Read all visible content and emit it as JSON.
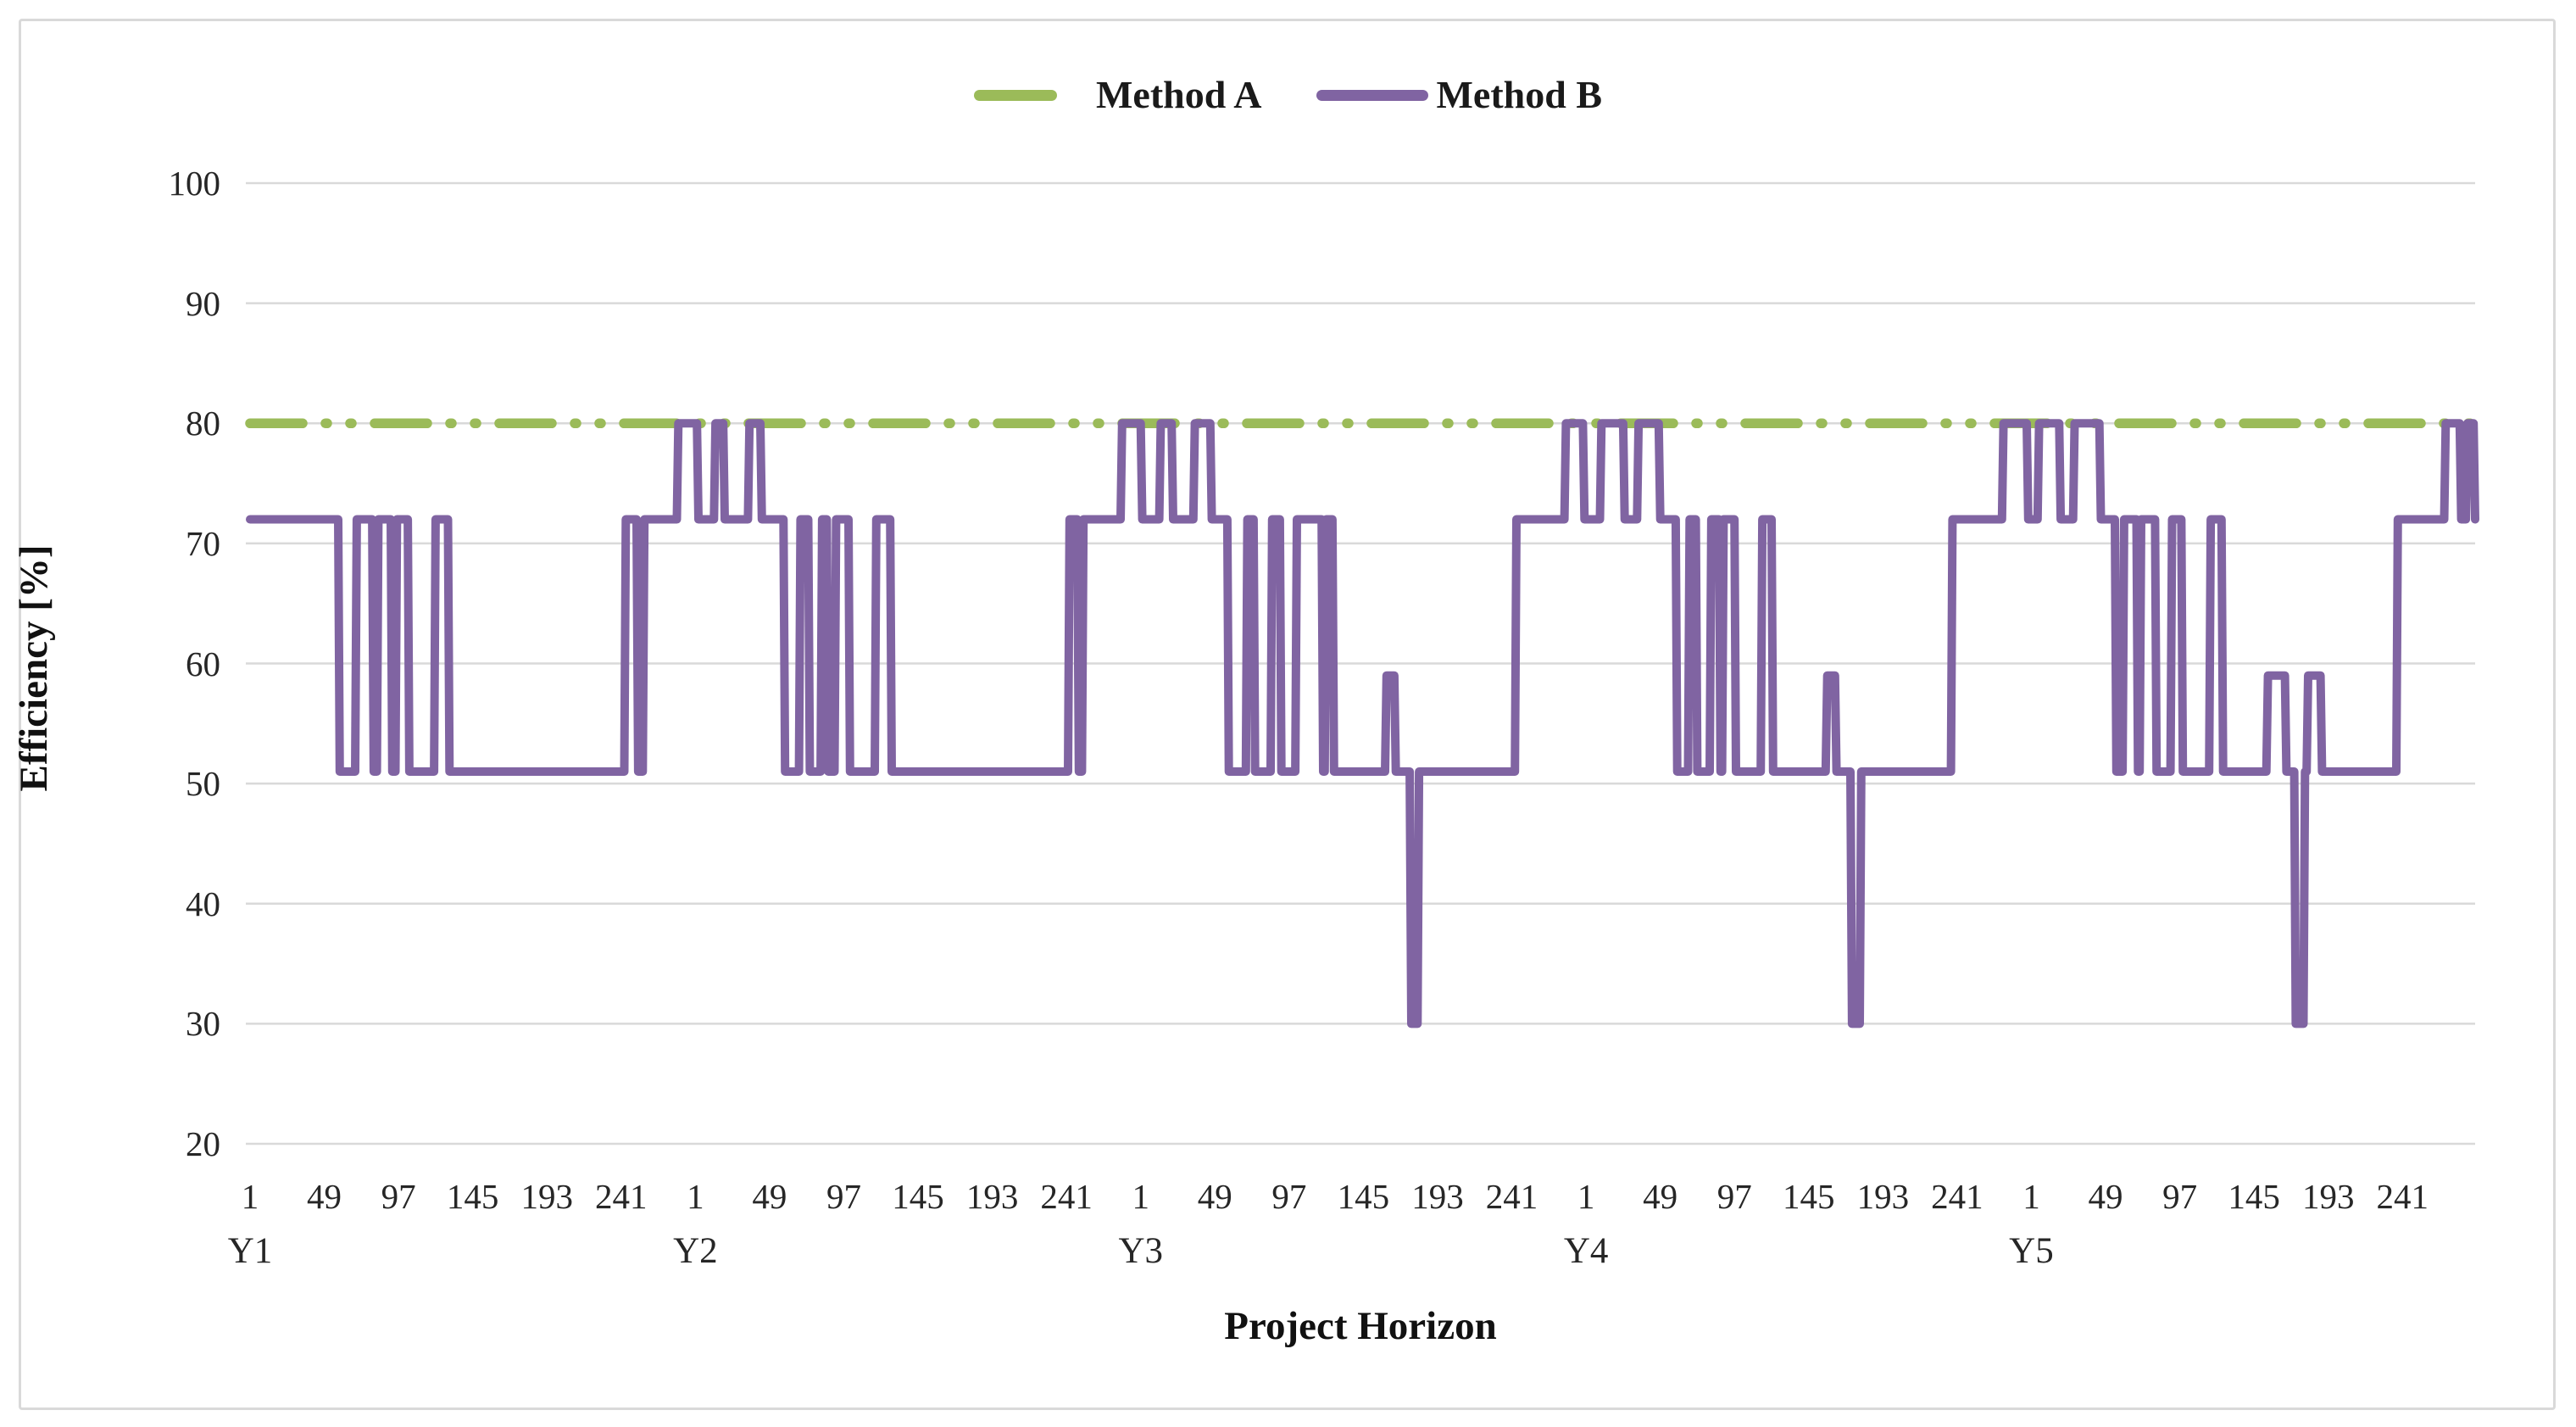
{
  "colors": {
    "method_a_green": "#9bbb59",
    "method_b_purple": "#8064a2",
    "gridline": "#d9d9d9",
    "chart_border": "#d9d9d9",
    "tick_text": "#262626",
    "title_text": "#111111",
    "background": "#ffffff"
  },
  "chart_data": {
    "type": "line",
    "title": "",
    "xlabel": "Project Horizon",
    "ylabel": "Efficiency [%]",
    "ylim": [
      20,
      100
    ],
    "yticks": [
      20,
      30,
      40,
      50,
      60,
      70,
      80,
      90,
      100
    ],
    "grid": true,
    "legend_position": "top-center",
    "legend": [
      {
        "label": "Method A",
        "color": "#9bbb59",
        "style": "dash-dot-dot"
      },
      {
        "label": "Method B",
        "color": "#8064a2",
        "style": "solid"
      }
    ],
    "x_axis": {
      "group_labels": [
        "Y1",
        "Y2",
        "Y3",
        "Y4",
        "Y5"
      ],
      "ticks_within_group": [
        1,
        49,
        97,
        145,
        193,
        241
      ],
      "points_per_group": 288,
      "total_points": 1440
    },
    "series": [
      {
        "name": "Method A",
        "color": "#9bbb59",
        "line_style": "dash-dot-dot",
        "type": "constant",
        "constant_value": 80,
        "x_start": 1,
        "x_end": 1440
      },
      {
        "name": "Method B",
        "color": "#8064a2",
        "line_style": "solid",
        "type": "step_runs",
        "step_runs": [
          [
            1,
            58,
            72
          ],
          [
            59,
            69,
            51
          ],
          [
            70,
            80,
            72
          ],
          [
            81,
            83,
            51
          ],
          [
            84,
            92,
            72
          ],
          [
            93,
            95,
            51
          ],
          [
            96,
            103,
            72
          ],
          [
            104,
            120,
            51
          ],
          [
            121,
            129,
            72
          ],
          [
            130,
            243,
            51
          ],
          [
            244,
            251,
            72
          ],
          [
            252,
            255,
            51
          ],
          [
            256,
            277,
            72
          ],
          [
            278,
            290,
            80
          ],
          [
            291,
            301,
            72
          ],
          [
            302,
            307,
            80
          ],
          [
            308,
            323,
            72
          ],
          [
            324,
            331,
            80
          ],
          [
            332,
            346,
            72
          ],
          [
            347,
            356,
            51
          ],
          [
            357,
            362,
            72
          ],
          [
            363,
            370,
            51
          ],
          [
            371,
            374,
            72
          ],
          [
            375,
            379,
            51
          ],
          [
            380,
            388,
            72
          ],
          [
            389,
            405,
            51
          ],
          [
            406,
            415,
            72
          ],
          [
            416,
            530,
            51
          ],
          [
            531,
            536,
            72
          ],
          [
            537,
            539,
            51
          ],
          [
            540,
            564,
            72
          ],
          [
            565,
            577,
            80
          ],
          [
            578,
            589,
            72
          ],
          [
            590,
            597,
            80
          ],
          [
            598,
            611,
            72
          ],
          [
            612,
            622,
            80
          ],
          [
            623,
            633,
            72
          ],
          [
            634,
            645,
            51
          ],
          [
            646,
            650,
            72
          ],
          [
            651,
            661,
            51
          ],
          [
            662,
            667,
            72
          ],
          [
            668,
            677,
            51
          ],
          [
            678,
            694,
            72
          ],
          [
            695,
            696,
            51
          ],
          [
            697,
            701,
            72
          ],
          [
            702,
            735,
            51
          ],
          [
            736,
            741,
            59
          ],
          [
            742,
            751,
            51
          ],
          [
            752,
            756,
            30
          ],
          [
            757,
            819,
            51
          ],
          [
            820,
            851,
            72
          ],
          [
            852,
            863,
            80
          ],
          [
            864,
            874,
            72
          ],
          [
            875,
            889,
            80
          ],
          [
            890,
            898,
            72
          ],
          [
            899,
            912,
            80
          ],
          [
            913,
            923,
            72
          ],
          [
            924,
            931,
            51
          ],
          [
            932,
            936,
            72
          ],
          [
            937,
            945,
            51
          ],
          [
            946,
            951,
            72
          ],
          [
            952,
            953,
            51
          ],
          [
            954,
            961,
            72
          ],
          [
            962,
            978,
            51
          ],
          [
            979,
            985,
            72
          ],
          [
            986,
            1020,
            51
          ],
          [
            1021,
            1026,
            59
          ],
          [
            1027,
            1036,
            51
          ],
          [
            1037,
            1042,
            30
          ],
          [
            1043,
            1101,
            51
          ],
          [
            1102,
            1134,
            72
          ],
          [
            1135,
            1150,
            80
          ],
          [
            1151,
            1157,
            72
          ],
          [
            1158,
            1171,
            80
          ],
          [
            1172,
            1180,
            72
          ],
          [
            1181,
            1197,
            80
          ],
          [
            1198,
            1207,
            72
          ],
          [
            1208,
            1212,
            51
          ],
          [
            1213,
            1221,
            72
          ],
          [
            1222,
            1223,
            51
          ],
          [
            1224,
            1233,
            72
          ],
          [
            1234,
            1243,
            51
          ],
          [
            1244,
            1250,
            72
          ],
          [
            1251,
            1268,
            51
          ],
          [
            1269,
            1276,
            72
          ],
          [
            1277,
            1305,
            51
          ],
          [
            1306,
            1317,
            59
          ],
          [
            1318,
            1323,
            51
          ],
          [
            1324,
            1329,
            30
          ],
          [
            1330,
            1331,
            51
          ],
          [
            1332,
            1340,
            59
          ],
          [
            1341,
            1389,
            51
          ],
          [
            1390,
            1420,
            72
          ],
          [
            1421,
            1430,
            80
          ],
          [
            1431,
            1434,
            72
          ],
          [
            1435,
            1439,
            80
          ],
          [
            1440,
            1440,
            72
          ]
        ]
      }
    ]
  }
}
